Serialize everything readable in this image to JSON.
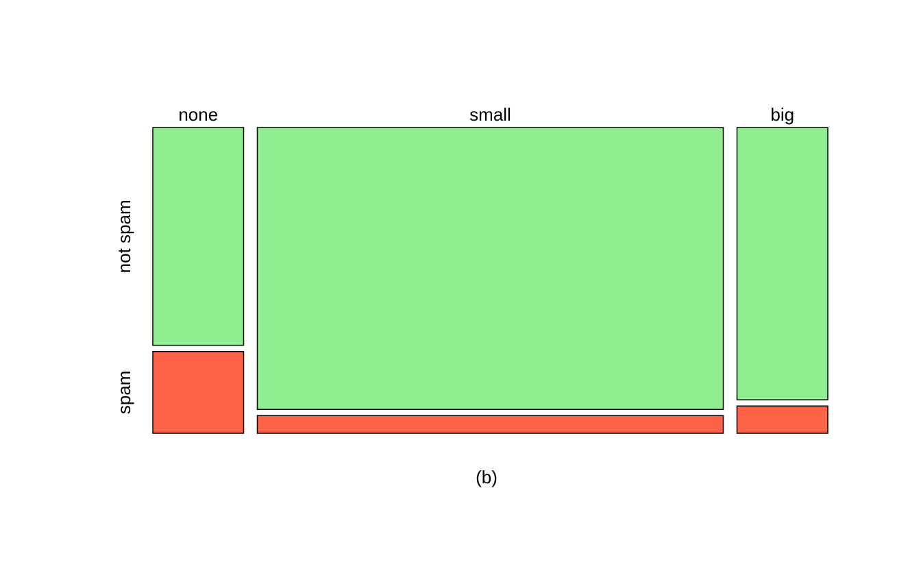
{
  "chart_data": {
    "type": "mosaic",
    "caption": "(b)",
    "x_variable_categories": [
      "none",
      "small",
      "big"
    ],
    "y_variable_categories": [
      "not spam",
      "spam"
    ],
    "column_widths": [
      0.1525,
      0.7826,
      0.1525
    ],
    "cells": [
      {
        "column": "none",
        "not_spam": 0.727,
        "spam": 0.273
      },
      {
        "column": "small",
        "not_spam": 0.941,
        "spam": 0.059
      },
      {
        "column": "big",
        "not_spam": 0.909,
        "spam": 0.091
      }
    ],
    "colors": {
      "not spam": "#90EE90",
      "spam": "#FF6347"
    },
    "border_color": "#000000"
  }
}
